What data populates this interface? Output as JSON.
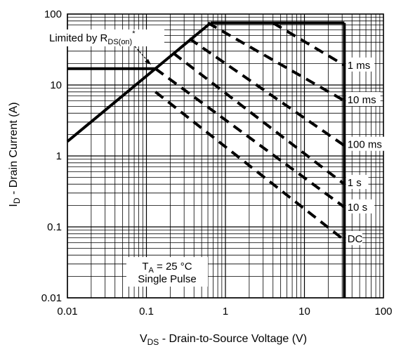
{
  "chart_data": {
    "type": "line",
    "title": "",
    "x_scale": "log",
    "y_scale": "log",
    "xlim": [
      0.01,
      100
    ],
    "ylim": [
      0.01,
      100
    ],
    "grid": true,
    "xlabel": {
      "main": "V",
      "sub": "DS",
      "rest": " - Drain-to-Source Voltage (V)"
    },
    "ylabel": {
      "main": "I",
      "sub": "D",
      "rest": " - Drain Current (A)"
    },
    "x_ticks": [
      {
        "value": 0.01,
        "label": "0.01"
      },
      {
        "value": 0.1,
        "label": "0.1"
      },
      {
        "value": 1,
        "label": "1"
      },
      {
        "value": 10,
        "label": "10"
      },
      {
        "value": 100,
        "label": "100"
      }
    ],
    "y_ticks": [
      {
        "value": 0.01,
        "label": "0.01"
      },
      {
        "value": 0.1,
        "label": "0.1"
      },
      {
        "value": 1,
        "label": "1"
      },
      {
        "value": 10,
        "label": "10"
      },
      {
        "value": 100,
        "label": "100"
      }
    ],
    "boundary": {
      "rds_on_limit": [
        [
          0.01,
          1.6
        ],
        [
          0.65,
          75
        ]
      ],
      "pulse_current_limit": [
        [
          0.65,
          75
        ],
        [
          32,
          75
        ]
      ],
      "continuous_current_limit": [
        [
          0.01,
          17
        ],
        [
          0.13,
          17
        ]
      ],
      "voltage_limit": [
        [
          32,
          75
        ],
        [
          32,
          0.01
        ]
      ]
    },
    "series": [
      {
        "name": "1 ms",
        "points": [
          [
            4,
            75
          ],
          [
            32,
            19
          ]
        ],
        "label_at": [
          38,
          19
        ]
      },
      {
        "name": "10 ms",
        "points": [
          [
            0.6,
            75
          ],
          [
            32,
            6
          ]
        ],
        "label_at": [
          38,
          6.2
        ]
      },
      {
        "name": "100 ms",
        "points": [
          [
            0.35,
            45
          ],
          [
            32,
            1.4
          ]
        ],
        "label_at": [
          38,
          1.45
        ]
      },
      {
        "name": "1 s",
        "points": [
          [
            0.22,
            28
          ],
          [
            32,
            0.4
          ]
        ],
        "label_at": [
          38,
          0.42
        ]
      },
      {
        "name": "10 s",
        "points": [
          [
            0.13,
            17
          ],
          [
            32,
            0.19
          ]
        ],
        "label_at": [
          38,
          0.19
        ]
      },
      {
        "name": "DC",
        "points": [
          [
            0.13,
            8
          ],
          [
            32,
            0.065
          ]
        ],
        "label_at": [
          38,
          0.068
        ]
      }
    ],
    "annotations": {
      "limited_by": {
        "text": "Limited by R",
        "sub": "DS(on)",
        "sup": "*"
      },
      "ta_line": {
        "main": "T",
        "sub": "A",
        "rest": " = 25 °C"
      },
      "single_pulse": "Single Pulse"
    }
  }
}
